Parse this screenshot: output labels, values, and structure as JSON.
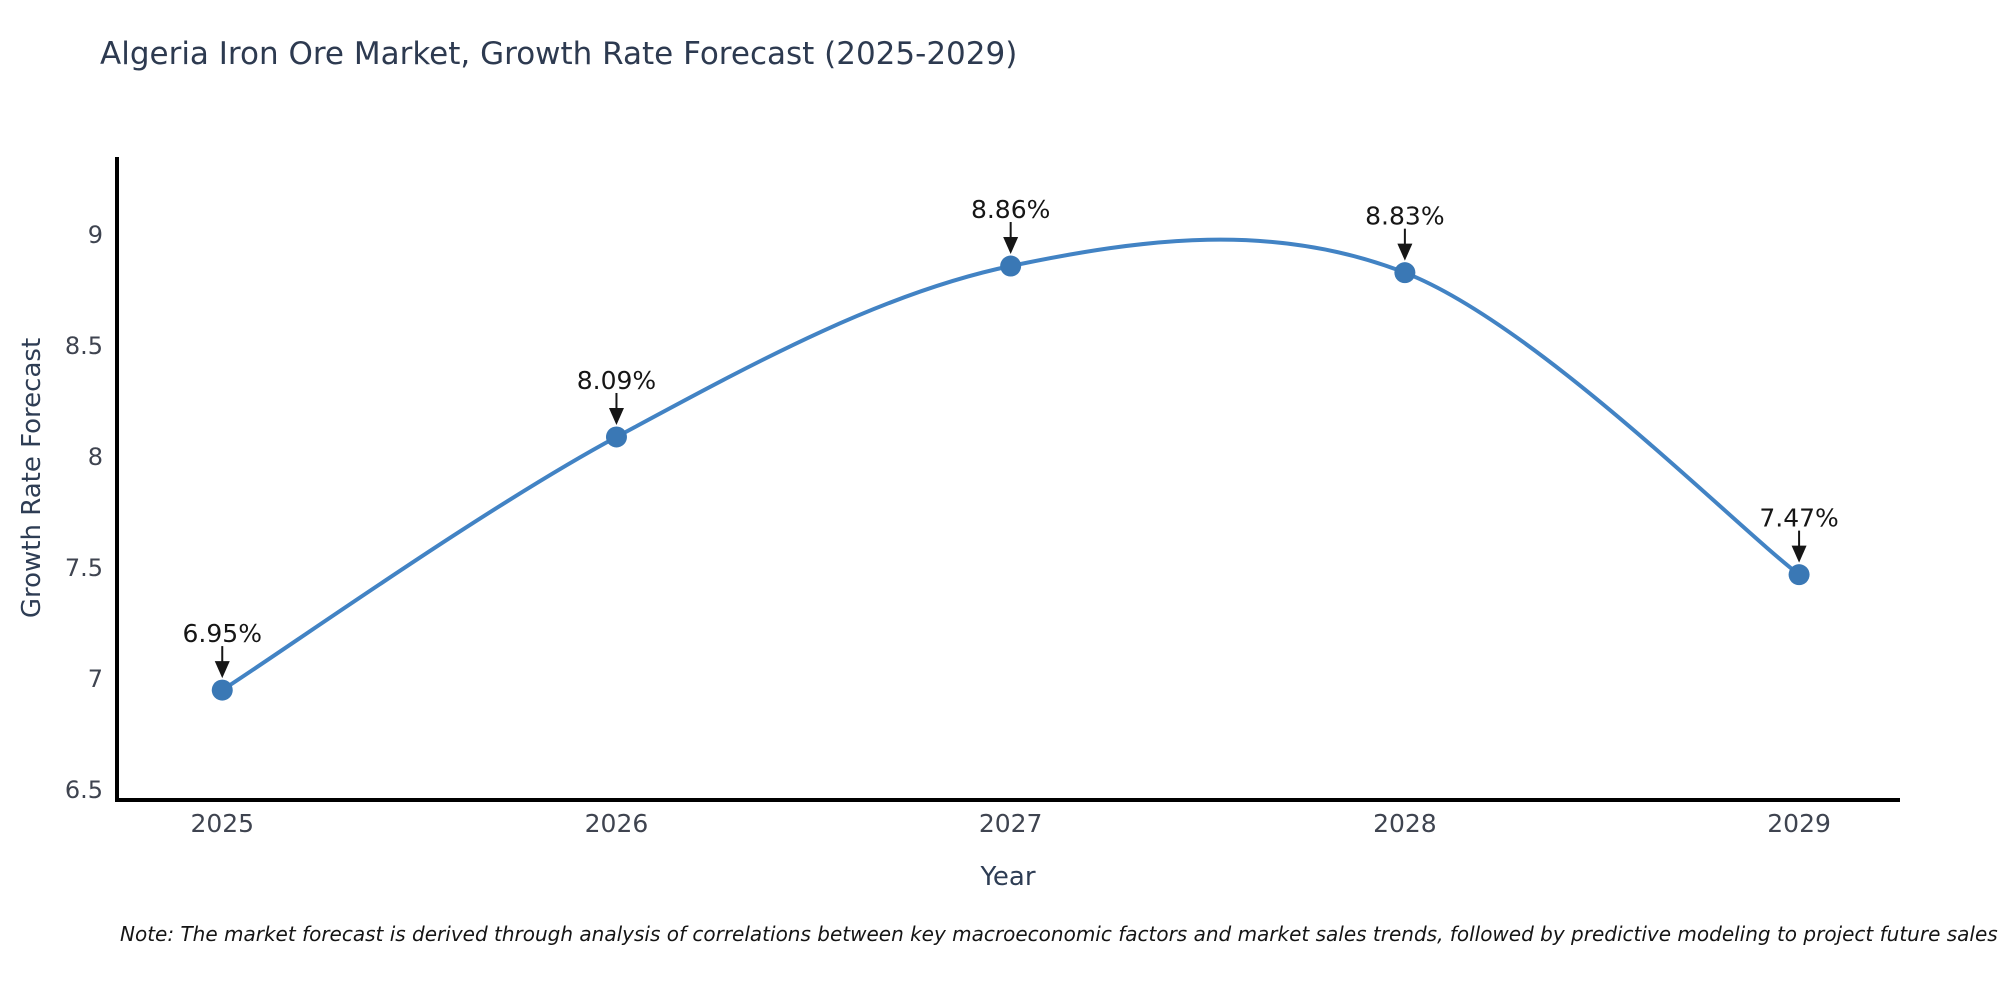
{
  "page": {
    "background": "#ffffff"
  },
  "chart_data": {
    "type": "line",
    "title": "Algeria Iron Ore Market, Growth Rate Forecast (2025-2029)",
    "xlabel": "Year",
    "ylabel": "Growth Rate Forecast",
    "categories": [
      "2025",
      "2026",
      "2027",
      "2028",
      "2029"
    ],
    "x": [
      2025,
      2026,
      2027,
      2028,
      2029
    ],
    "values": [
      6.95,
      8.09,
      8.86,
      8.83,
      7.47
    ],
    "point_labels": [
      "6.95%",
      "8.09%",
      "8.86%",
      "8.83%",
      "7.47%"
    ],
    "ytick_values": [
      6.5,
      7,
      7.5,
      8,
      8.5,
      9
    ],
    "ytick_labels": [
      "6.5",
      "7",
      "7.5",
      "8",
      "8.5",
      "9"
    ],
    "xlim": [
      2024.733,
      2029.256
    ],
    "ylim": [
      6.455,
      9.351
    ],
    "grid": false,
    "legend_position": "none",
    "line_shape": "spline",
    "colors": {
      "line": "#4283c4",
      "marker": "#3a78b5",
      "axis_line": "#000000",
      "tick_label": "#3f4450",
      "axis_title": "#2e3d54",
      "title": "#2d3a50",
      "annotation": "#161616"
    }
  },
  "note": {
    "text": "Note: The market forecast is derived through analysis of correlations between key macroeconomic factors and market sales trends, followed by predictive modeling to project future sales"
  }
}
